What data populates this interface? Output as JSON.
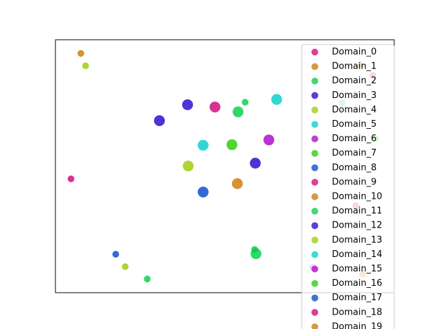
{
  "chart_data": {
    "type": "scatter",
    "xlim": [
      0,
      10
    ],
    "ylim": [
      0,
      10
    ],
    "legend": "upper right",
    "series": [
      {
        "name": "Domain_0",
        "color": "#cc0077",
        "size": 130,
        "x": [
          4.71
        ],
        "values": [
          7.34
        ]
      },
      {
        "name": "Domain_1",
        "color": "#cc7700",
        "size": 130,
        "x": [
          5.37
        ],
        "values": [
          4.31
        ]
      },
      {
        "name": "Domain_2",
        "color": "#00cc44",
        "size": 130,
        "x": [
          5.39,
          5.92
        ],
        "values": [
          7.15,
          1.54
        ]
      },
      {
        "name": "Domain_3",
        "color": "#2200cc",
        "size": 130,
        "x": [
          3.9,
          3.07
        ],
        "values": [
          7.43,
          6.8
        ]
      },
      {
        "name": "Domain_4",
        "color": "#99cc00",
        "size": 130,
        "x": [
          3.92
        ],
        "values": [
          5.01
        ]
      },
      {
        "name": "Domain_5",
        "color": "#00cccc",
        "size": 130,
        "x": [
          4.36,
          6.53
        ],
        "values": [
          5.83,
          7.64
        ]
      },
      {
        "name": "Domain_6",
        "color": "#aa00cc",
        "size": 130,
        "x": [
          6.3
        ],
        "values": [
          6.04
        ]
      },
      {
        "name": "Domain_7",
        "color": "#22cc00",
        "size": 130,
        "x": [
          5.21
        ],
        "values": [
          5.85
        ]
      },
      {
        "name": "Domain_8",
        "color": "#0044cc",
        "size": 130,
        "x": [
          4.36
        ],
        "values": [
          3.98
        ]
      },
      {
        "name": "Domain_9",
        "color": "#cc0077",
        "size": 50,
        "x": [
          0.46,
          9.37
        ],
        "values": [
          4.5,
          8.59
        ]
      },
      {
        "name": "Domain_10",
        "color": "#cc7700",
        "size": 50,
        "x": [
          0.75,
          9.01
        ],
        "values": [
          9.46,
          9.0
        ]
      },
      {
        "name": "Domain_11",
        "color": "#00cc44",
        "size": 50,
        "x": [
          2.71,
          5.6,
          5.88
        ],
        "values": [
          0.54,
          7.53,
          1.71
        ]
      },
      {
        "name": "Domain_12",
        "color": "#2200cc",
        "size": 130,
        "x": [
          5.9
        ],
        "values": [
          5.12
        ]
      },
      {
        "name": "Domain_13",
        "color": "#99cc00",
        "size": 50,
        "x": [
          0.89,
          2.06
        ],
        "values": [
          8.97,
          1.03
        ]
      },
      {
        "name": "Domain_14",
        "color": "#00cccc",
        "size": 50,
        "x": [
          8.46
        ],
        "values": [
          7.51
        ]
      },
      {
        "name": "Domain_15",
        "color": "#aa00cc",
        "size": 50,
        "x": [
          7.6
        ],
        "values": [
          1.0
        ]
      },
      {
        "name": "Domain_16",
        "color": "#22cc00",
        "size": 50,
        "x": [
          9.45
        ],
        "values": [
          6.1
        ]
      },
      {
        "name": "Domain_17",
        "color": "#0044cc",
        "size": 50,
        "x": [
          1.78
        ],
        "values": [
          1.52
        ]
      },
      {
        "name": "Domain_18",
        "color": "#cc0077",
        "size": 50,
        "x": [
          8.87
        ],
        "values": [
          3.44
        ]
      },
      {
        "name": "Domain_19",
        "color": "#cc7700",
        "size": 50,
        "x": [
          9.07
        ],
        "values": [
          0.73
        ]
      }
    ]
  }
}
